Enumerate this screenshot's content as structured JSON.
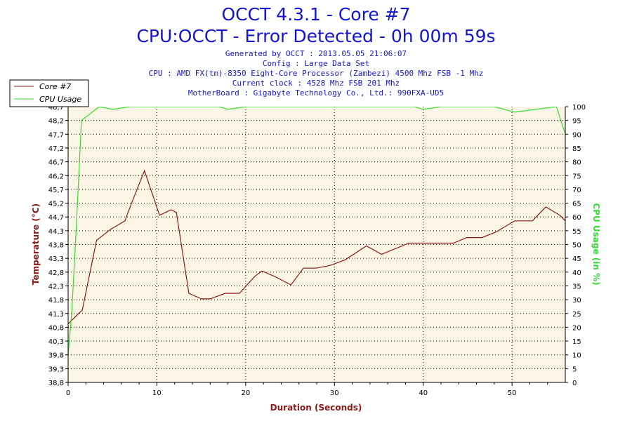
{
  "header": {
    "title_line1": "OCCT 4.3.1 - Core #7",
    "title_line2": "CPU:OCCT - Error Detected - 0h 00m 59s",
    "info_lines": [
      "Generated by OCCT : 2013.05.05 21:06:07",
      "Config : Large Data Set",
      "CPU : AMD FX(tm)-8350 Eight-Core Processor (Zambezi) 4500 Mhz FSB -1 Mhz",
      "Current clock : 4528 Mhz FSB 201 Mhz",
      "MotherBoard : Gigabyte Technology Co., Ltd.: 990FXA-UD5"
    ]
  },
  "colors": {
    "background": "#ffffff",
    "plot_background": "#fbf5e6",
    "temperature_line": "#8b1a1a",
    "usage_line": "#33dd33",
    "title": "#1414d2",
    "grid": "#000000"
  },
  "chart_data": {
    "type": "line",
    "xlabel": "Duration (Seconds)",
    "ylabel": "Temperature (°C)",
    "y2label": "CPU Usage (in %)",
    "xlim": [
      0,
      56
    ],
    "ylim": [
      38.8,
      48.7
    ],
    "y2lim": [
      0,
      100
    ],
    "x_ticks": [
      "0",
      "10",
      "20",
      "30",
      "40",
      "50"
    ],
    "y_ticks": [
      "38,8",
      "39,3",
      "39,8",
      "40,3",
      "40,8",
      "41,3",
      "41,8",
      "42,3",
      "42,8",
      "43,3",
      "43,8",
      "44,3",
      "44,7",
      "45,2",
      "45,7",
      "46,2",
      "46,7",
      "47,2",
      "47,7",
      "48,2",
      "48,7"
    ],
    "y2_ticks": [
      "0",
      "5",
      "10",
      "15",
      "20",
      "25",
      "30",
      "35",
      "40",
      "45",
      "50",
      "55",
      "60",
      "65",
      "70",
      "75",
      "80",
      "85",
      "90",
      "95",
      "100"
    ],
    "grid": true,
    "legend_position": "top-left",
    "series": [
      {
        "name": "Core #7",
        "axis": "left",
        "color": "#8b1a1a",
        "points": [
          [
            0,
            40.9
          ],
          [
            1.6,
            41.4
          ],
          [
            3.2,
            43.9
          ],
          [
            4.8,
            44.3
          ],
          [
            6.4,
            44.6
          ],
          [
            7.1,
            45.2
          ],
          [
            8.6,
            46.4
          ],
          [
            10.3,
            44.8
          ],
          [
            11.6,
            45.0
          ],
          [
            12.2,
            44.9
          ],
          [
            13.6,
            42.0
          ],
          [
            15.0,
            41.8
          ],
          [
            16.0,
            41.8
          ],
          [
            17.7,
            42.0
          ],
          [
            19.3,
            42.0
          ],
          [
            21.0,
            42.6
          ],
          [
            21.8,
            42.8
          ],
          [
            23.3,
            42.6
          ],
          [
            25.1,
            42.3
          ],
          [
            26.5,
            42.9
          ],
          [
            27.9,
            42.9
          ],
          [
            29.5,
            43.0
          ],
          [
            31.2,
            43.2
          ],
          [
            33.6,
            43.7
          ],
          [
            35.3,
            43.4
          ],
          [
            38.4,
            43.8
          ],
          [
            41.9,
            43.8
          ],
          [
            43.4,
            43.8
          ],
          [
            44.9,
            44.0
          ],
          [
            46.6,
            44.0
          ],
          [
            48.2,
            44.2
          ],
          [
            50.3,
            44.6
          ],
          [
            52.3,
            44.6
          ],
          [
            53.8,
            45.1
          ],
          [
            55.4,
            44.8
          ],
          [
            56.0,
            44.6
          ]
        ]
      },
      {
        "name": "CPU Usage",
        "axis": "right",
        "color": "#33dd33",
        "points": [
          [
            0,
            10
          ],
          [
            0.4,
            25
          ],
          [
            0.9,
            55
          ],
          [
            1.5,
            95
          ],
          [
            3.5,
            100
          ],
          [
            5.0,
            99
          ],
          [
            7.0,
            100
          ],
          [
            17.0,
            100
          ],
          [
            18.0,
            99
          ],
          [
            20.0,
            100
          ],
          [
            39.0,
            100
          ],
          [
            40.0,
            99
          ],
          [
            42.0,
            100
          ],
          [
            48.0,
            100
          ],
          [
            50.3,
            98
          ],
          [
            55.0,
            100
          ],
          [
            56.0,
            90
          ]
        ]
      }
    ]
  }
}
